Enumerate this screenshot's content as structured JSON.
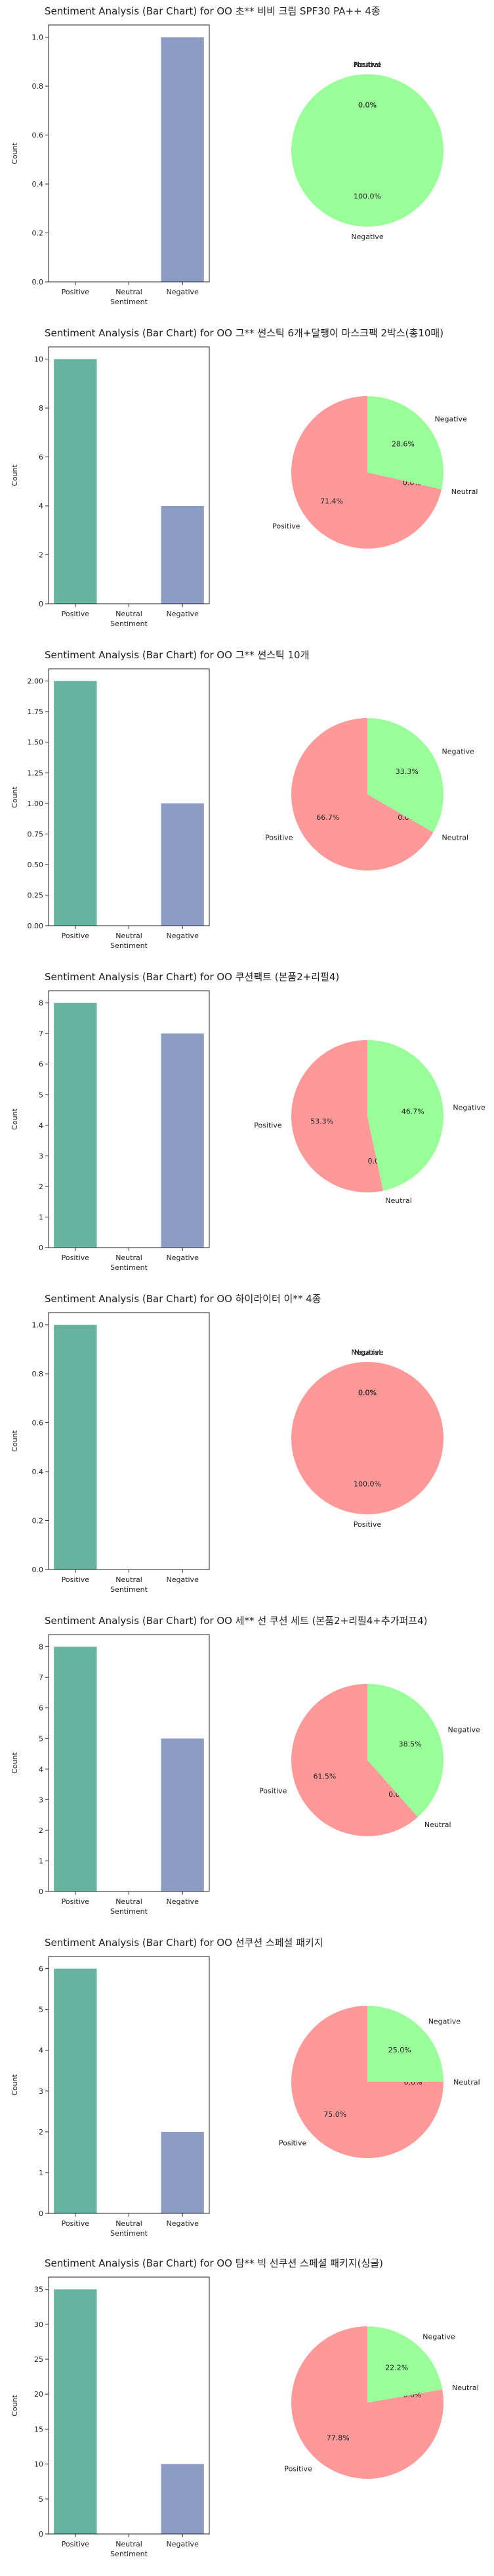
{
  "colors": {
    "positive_bar": "#66b3a0",
    "negative_bar": "#8c9dc4",
    "pie_positive": "#ff9999",
    "pie_negative": "#99ff99",
    "text": "#222222"
  },
  "chart_data": [
    {
      "type": "bar",
      "title": "Sentiment Analysis (Bar Chart) for OO 초** 비비 크림 SPF30 PA++ 4종",
      "categories": [
        "Positive",
        "Neutral",
        "Negative"
      ],
      "values": [
        0,
        0,
        1
      ],
      "xlabel": "Sentiment",
      "ylabel": "Count",
      "ylim": [
        0,
        1.05
      ],
      "yticks": [
        "0.0",
        "0.2",
        "0.4",
        "0.6",
        "0.8",
        "1.0"
      ],
      "ytick_values": [
        0,
        0.2,
        0.4,
        0.6,
        0.8,
        1.0
      ],
      "pie": {
        "type": "pie",
        "slices": [
          {
            "label": "Positive",
            "value": 0,
            "pct": "0.0%"
          },
          {
            "label": "Negative",
            "value": 1,
            "pct": "100.0%"
          }
        ],
        "overlap_labels": [
          "Positive",
          "Neutral"
        ],
        "overlap_pct": [
          "0.0%",
          "0.0%"
        ]
      }
    },
    {
      "type": "bar",
      "title": "Sentiment Analysis (Bar Chart) for OO 그** 썬스틱 6개+달팽이 마스크팩 2박스(총10매)",
      "categories": [
        "Positive",
        "Neutral",
        "Negative"
      ],
      "values": [
        10,
        0,
        4
      ],
      "xlabel": "Sentiment",
      "ylabel": "Count",
      "ylim": [
        0,
        10.5
      ],
      "yticks": [
        "0",
        "2",
        "4",
        "6",
        "8",
        "10"
      ],
      "ytick_values": [
        0,
        2,
        4,
        6,
        8,
        10
      ],
      "pie": {
        "type": "pie",
        "slices": [
          {
            "label": "Positive",
            "value": 10,
            "pct": "71.4%"
          },
          {
            "label": "Neutral",
            "value": 0,
            "pct": "0.0%"
          },
          {
            "label": "Negative",
            "value": 4,
            "pct": "28.6%"
          }
        ]
      }
    },
    {
      "type": "bar",
      "title": "Sentiment Analysis (Bar Chart) for OO 그** 썬스틱 10개",
      "categories": [
        "Positive",
        "Neutral",
        "Negative"
      ],
      "values": [
        2,
        0,
        1
      ],
      "xlabel": "Sentiment",
      "ylabel": "Count",
      "ylim": [
        0,
        2.1
      ],
      "yticks": [
        "0.00",
        "0.25",
        "0.50",
        "0.75",
        "1.00",
        "1.25",
        "1.50",
        "1.75",
        "2.00"
      ],
      "ytick_values": [
        0,
        0.25,
        0.5,
        0.75,
        1.0,
        1.25,
        1.5,
        1.75,
        2.0
      ],
      "pie": {
        "type": "pie",
        "slices": [
          {
            "label": "Positive",
            "value": 2,
            "pct": "66.7%"
          },
          {
            "label": "Neutral",
            "value": 0,
            "pct": "0.0%"
          },
          {
            "label": "Negative",
            "value": 1,
            "pct": "33.3%"
          }
        ]
      }
    },
    {
      "type": "bar",
      "title": "Sentiment Analysis (Bar Chart) for OO 쿠션팩트 (본품2+리필4)",
      "categories": [
        "Positive",
        "Neutral",
        "Negative"
      ],
      "values": [
        8,
        0,
        7
      ],
      "xlabel": "Sentiment",
      "ylabel": "Count",
      "ylim": [
        0,
        8.4
      ],
      "yticks": [
        "0",
        "1",
        "2",
        "3",
        "4",
        "5",
        "6",
        "7",
        "8"
      ],
      "ytick_values": [
        0,
        1,
        2,
        3,
        4,
        5,
        6,
        7,
        8
      ],
      "pie": {
        "type": "pie",
        "slices": [
          {
            "label": "Positive",
            "value": 8,
            "pct": "53.3%"
          },
          {
            "label": "Neutral",
            "value": 0,
            "pct": "0.0%"
          },
          {
            "label": "Negative",
            "value": 7,
            "pct": "46.7%"
          }
        ]
      }
    },
    {
      "type": "bar",
      "title": "Sentiment Analysis (Bar Chart) for OO 하이라이터 이** 4종",
      "categories": [
        "Positive",
        "Neutral",
        "Negative"
      ],
      "values": [
        1,
        0,
        0
      ],
      "xlabel": "Sentiment",
      "ylabel": "Count",
      "ylim": [
        0,
        1.05
      ],
      "yticks": [
        "0.0",
        "0.2",
        "0.4",
        "0.6",
        "0.8",
        "1.0"
      ],
      "ytick_values": [
        0,
        0.2,
        0.4,
        0.6,
        0.8,
        1.0
      ],
      "pie": {
        "type": "pie",
        "slices": [
          {
            "label": "Positive",
            "value": 1,
            "pct": "100.0%"
          },
          {
            "label": "Negative",
            "value": 0,
            "pct": "0.0%"
          }
        ],
        "overlap_labels": [
          "Neutral",
          "Negative"
        ],
        "overlap_pct": [
          "0.0%",
          "0.0%"
        ]
      }
    },
    {
      "type": "bar",
      "title": "Sentiment Analysis (Bar Chart) for OO 세** 선 쿠션 세트 (본품2+리필4+추가퍼프4)",
      "categories": [
        "Positive",
        "Neutral",
        "Negative"
      ],
      "values": [
        8,
        0,
        5
      ],
      "xlabel": "Sentiment",
      "ylabel": "Count",
      "ylim": [
        0,
        8.4
      ],
      "yticks": [
        "0",
        "1",
        "2",
        "3",
        "4",
        "5",
        "6",
        "7",
        "8"
      ],
      "ytick_values": [
        0,
        1,
        2,
        3,
        4,
        5,
        6,
        7,
        8
      ],
      "pie": {
        "type": "pie",
        "slices": [
          {
            "label": "Positive",
            "value": 8,
            "pct": "61.5%"
          },
          {
            "label": "Neutral",
            "value": 0,
            "pct": "0.0%"
          },
          {
            "label": "Negative",
            "value": 5,
            "pct": "38.5%"
          }
        ]
      }
    },
    {
      "type": "bar",
      "title": "Sentiment Analysis (Bar Chart) for OO 선쿠션 스페셜 패키지",
      "categories": [
        "Positive",
        "Neutral",
        "Negative"
      ],
      "values": [
        6,
        0,
        2
      ],
      "xlabel": "Sentiment",
      "ylabel": "Count",
      "ylim": [
        0,
        6.3
      ],
      "yticks": [
        "0",
        "1",
        "2",
        "3",
        "4",
        "5",
        "6"
      ],
      "ytick_values": [
        0,
        1,
        2,
        3,
        4,
        5,
        6
      ],
      "pie": {
        "type": "pie",
        "slices": [
          {
            "label": "Positive",
            "value": 6,
            "pct": "75.0%"
          },
          {
            "label": "Neutral",
            "value": 0,
            "pct": "0.0%"
          },
          {
            "label": "Negative",
            "value": 2,
            "pct": "25.0%"
          }
        ]
      }
    },
    {
      "type": "bar",
      "title": "Sentiment Analysis (Bar Chart) for OO 탐** 빅 선쿠션 스페셜 패키지(싱글)",
      "categories": [
        "Positive",
        "Neutral",
        "Negative"
      ],
      "values": [
        35,
        0,
        10
      ],
      "xlabel": "Sentiment",
      "ylabel": "Count",
      "ylim": [
        0,
        36.75
      ],
      "yticks": [
        "0",
        "5",
        "10",
        "15",
        "20",
        "25",
        "30",
        "35"
      ],
      "ytick_values": [
        0,
        5,
        10,
        15,
        20,
        25,
        30,
        35
      ],
      "pie": {
        "type": "pie",
        "slices": [
          {
            "label": "Positive",
            "value": 35,
            "pct": "77.8%"
          },
          {
            "label": "Neutral",
            "value": 0,
            "pct": "0.0%"
          },
          {
            "label": "Negative",
            "value": 10,
            "pct": "22.2%"
          }
        ]
      }
    }
  ]
}
